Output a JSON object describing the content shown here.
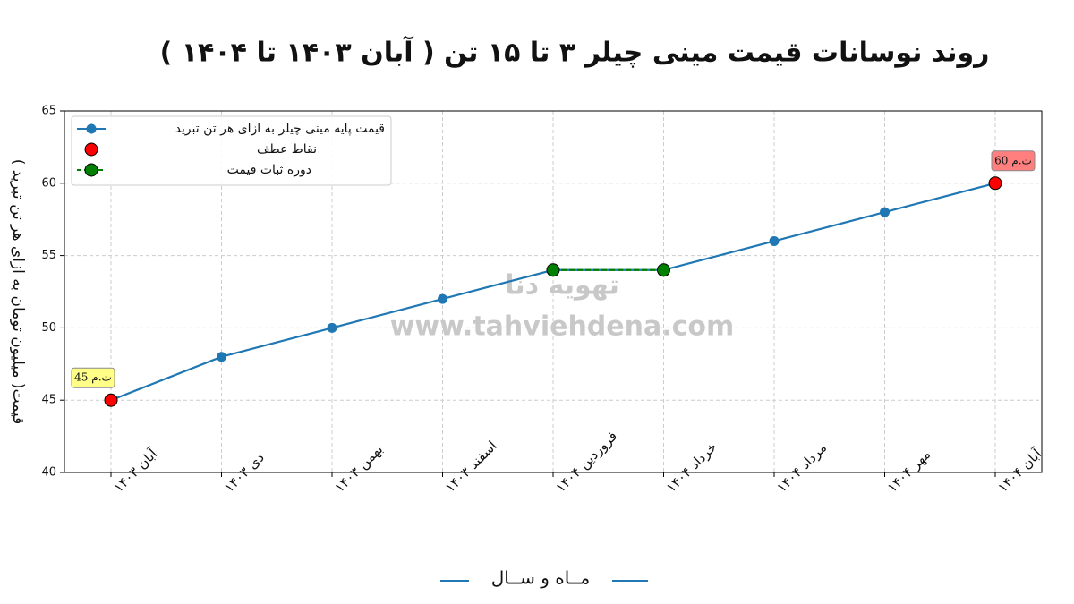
{
  "chart_data": {
    "type": "line",
    "title": "روند نوسانات قیمت مینی چیلر ۳ تا ۱۵ تن ( آبان ۱۴۰۳ تا ۱۴۰۴ )",
    "x_label": "مــاه و ســال",
    "y_label": "قیمت( میلیون تومان به ازای هر تن تبرید )",
    "watermark": [
      "تهویه دنا",
      "www.tahviehdena.com"
    ],
    "categories": [
      "آبان ۱۴۰۳",
      "دی ۱۴۰۳",
      "بهمن ۱۴۰۳",
      "اسفند ۱۴۰۳",
      "فروردین ۱۴۰۴",
      "خرداد ۱۴۰۴",
      "مرداد ۱۴۰۴",
      "مهر ۱۴۰۴",
      "آبان ۱۴۰۴"
    ],
    "series": [
      {
        "name": "قیمت پایه مینی چیلر به ازای هر تن تبرید",
        "color": "#1f77b4",
        "values": [
          45,
          48,
          50,
          52,
          54,
          54,
          56,
          58,
          60
        ]
      },
      {
        "name": "نقاط عطف",
        "color": "#ff0000",
        "values": [
          45,
          null,
          null,
          null,
          null,
          null,
          null,
          null,
          60
        ],
        "value_labels": [
          "ت.م 45",
          null,
          null,
          null,
          null,
          null,
          null,
          null,
          "ت.م 60"
        ]
      },
      {
        "name": "دوره ثبات قیمت",
        "color": "#008000",
        "values": [
          null,
          null,
          null,
          null,
          54,
          54,
          null,
          null,
          null
        ]
      }
    ],
    "ylim": [
      40,
      65
    ],
    "yticks": [
      40,
      45,
      50,
      55,
      60,
      65
    ],
    "grid": true,
    "legend": "upper left"
  }
}
